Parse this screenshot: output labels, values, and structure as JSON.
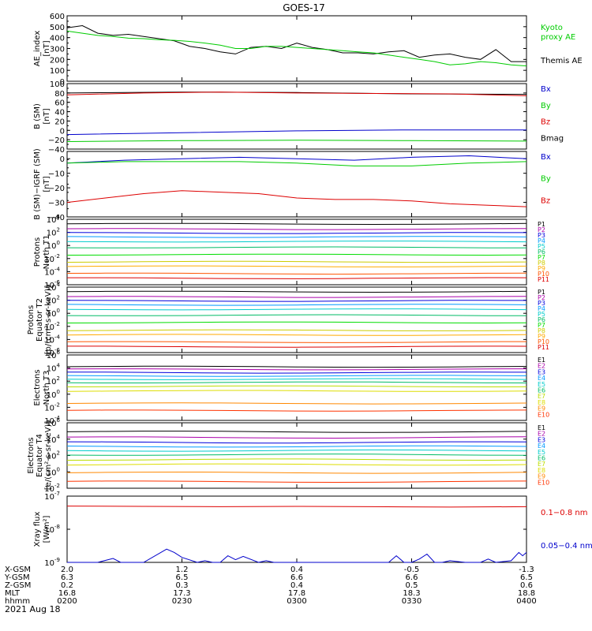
{
  "title": "GOES-17",
  "date": "2021 Aug 18",
  "colors": {
    "black": "#000000",
    "red": "#dd0000",
    "green": "#00cc00",
    "blue": "#0000cc",
    "P": [
      "#000000",
      "#aa00aa",
      "#0000dd",
      "#0099ff",
      "#00cccc",
      "#00bb66",
      "#00dd00",
      "#cccc00",
      "#ffaa00",
      "#ff5500",
      "#dd0000"
    ],
    "E": [
      "#000000",
      "#aa00aa",
      "#0000dd",
      "#0099ff",
      "#00cccc",
      "#00bb66",
      "#bbdd00",
      "#dddd00",
      "#ff8800",
      "#ff3300"
    ]
  },
  "ephemeris": {
    "rows": [
      {
        "label": "X-GSM",
        "values": [
          "2.0",
          "1.2",
          "0.4",
          "-0.5",
          "-1.3"
        ]
      },
      {
        "label": "Y-GSM",
        "values": [
          "6.3",
          "6.5",
          "6.6",
          "6.6",
          "6.5"
        ]
      },
      {
        "label": "Z-GSM",
        "values": [
          "0.2",
          "0.3",
          "0.4",
          "0.5",
          "0.6"
        ]
      },
      {
        "label": "MLT",
        "values": [
          "16.8",
          "17.3",
          "17.8",
          "18.3",
          "18.8"
        ]
      },
      {
        "label": "hhmm",
        "values": [
          "0200",
          "0230",
          "0300",
          "0330",
          "0400"
        ]
      }
    ]
  },
  "chart_data": [
    {
      "type": "line",
      "id": "ae",
      "ylabel": [
        "AE_index",
        "[nT]"
      ],
      "ylim": [
        0,
        600
      ],
      "log": false,
      "ticks": [
        "0",
        "100",
        "200",
        "300",
        "400",
        "500",
        "600"
      ],
      "x_range": [
        "02:00",
        "04:00"
      ],
      "legend": [
        {
          "text": "Kyoto",
          "color": "green"
        },
        {
          "text": "proxy AE",
          "color": "green"
        },
        {
          "text": "Themis AE",
          "color": "black"
        }
      ],
      "series": [
        {
          "name": "Themis AE",
          "color": "black",
          "x": [
            0,
            4,
            8,
            12,
            16,
            20,
            24,
            28,
            32,
            36,
            40,
            44,
            48,
            52,
            56,
            60,
            64,
            68,
            72,
            76,
            80,
            84,
            88,
            92,
            96,
            100,
            104,
            108,
            112,
            116,
            120
          ],
          "y": [
            490,
            510,
            440,
            420,
            430,
            410,
            390,
            370,
            320,
            300,
            270,
            250,
            310,
            320,
            300,
            350,
            310,
            290,
            260,
            260,
            250,
            270,
            280,
            220,
            240,
            250,
            220,
            200,
            290,
            180,
            180
          ]
        },
        {
          "name": "Kyoto proxy AE",
          "color": "green",
          "x": [
            0,
            4,
            8,
            12,
            16,
            20,
            24,
            28,
            32,
            36,
            40,
            44,
            48,
            52,
            56,
            60,
            64,
            68,
            72,
            76,
            80,
            84,
            88,
            92,
            96,
            100,
            104,
            108,
            112,
            116,
            120
          ],
          "y": [
            460,
            440,
            420,
            410,
            395,
            390,
            380,
            375,
            365,
            350,
            330,
            300,
            300,
            320,
            320,
            310,
            300,
            290,
            280,
            270,
            260,
            240,
            220,
            200,
            180,
            150,
            160,
            180,
            170,
            150,
            140
          ]
        }
      ]
    },
    {
      "type": "line",
      "id": "bsm",
      "ylabel": [
        "B (SM)",
        "[nT]"
      ],
      "ylim": [
        -40,
        100
      ],
      "log": false,
      "ticks": [
        "−40",
        "−20",
        "0",
        "20",
        "40",
        "60",
        "80",
        "100"
      ],
      "legend": [
        {
          "text": "Bx",
          "color": "blue"
        },
        {
          "text": "By",
          "color": "green"
        },
        {
          "text": "Bz",
          "color": "red"
        },
        {
          "text": "Bmag",
          "color": "black"
        }
      ],
      "series": [
        {
          "name": "Bmag",
          "color": "black",
          "x": [
            0,
            30,
            60,
            90,
            120
          ],
          "y": [
            80,
            82,
            81,
            78,
            77
          ]
        },
        {
          "name": "Bz",
          "color": "red",
          "x": [
            0,
            20,
            40,
            60,
            80,
            100,
            120
          ],
          "y": [
            76,
            80,
            82,
            80,
            79,
            78,
            74
          ]
        },
        {
          "name": "Bx",
          "color": "blue",
          "x": [
            0,
            30,
            60,
            90,
            120
          ],
          "y": [
            -9,
            -5,
            -1,
            1,
            1
          ]
        },
        {
          "name": "By",
          "color": "green",
          "x": [
            0,
            30,
            60,
            90,
            120
          ],
          "y": [
            -24,
            -22,
            -21,
            -22,
            -23
          ]
        }
      ]
    },
    {
      "type": "line",
      "id": "bigrf",
      "ylabel": [
        "B (SM)−IGRF (SM)",
        "[nT]"
      ],
      "ylim": [
        -40,
        5
      ],
      "log": false,
      "ticks": [
        "−40",
        "−30",
        "−20",
        "−10",
        "0"
      ],
      "legend": [
        {
          "text": "Bx",
          "color": "blue"
        },
        {
          "text": "By",
          "color": "green"
        },
        {
          "text": "Bz",
          "color": "red"
        }
      ],
      "series": [
        {
          "name": "Bx",
          "color": "blue",
          "x": [
            0,
            15,
            30,
            45,
            60,
            75,
            90,
            105,
            120
          ],
          "y": [
            -3,
            -1,
            0,
            1,
            0,
            -1,
            1,
            2,
            0
          ]
        },
        {
          "name": "By",
          "color": "green",
          "x": [
            0,
            15,
            30,
            45,
            60,
            75,
            90,
            105,
            120
          ],
          "y": [
            -3,
            -2,
            -2,
            -2,
            -3,
            -5,
            -5,
            -3,
            -2
          ]
        },
        {
          "name": "Bz",
          "color": "red",
          "x": [
            0,
            10,
            20,
            30,
            40,
            50,
            60,
            70,
            80,
            90,
            100,
            110,
            120
          ],
          "y": [
            -30,
            -27,
            -24,
            -22,
            -23,
            -24,
            -27,
            -28,
            -28,
            -29,
            -31,
            -32,
            -33
          ]
        }
      ]
    },
    {
      "type": "line",
      "id": "protons_t1",
      "ylabel": [
        "Protons",
        "North T1"
      ],
      "ylim": [
        -6,
        4
      ],
      "log": true,
      "ticks": [
        "10-6",
        "10-4",
        "10-2",
        "100",
        "102",
        "104"
      ],
      "legend_labels": [
        "P1",
        "P2",
        "P3",
        "P4",
        "P5",
        "P6",
        "P7",
        "P8",
        "P9",
        "P10",
        "P11"
      ],
      "series_levels": [
        3.3,
        2.5,
        1.9,
        1.3,
        0.6,
        -0.3,
        -1.4,
        -2.5,
        -3.2,
        -4.3,
        -5.0
      ]
    },
    {
      "type": "line",
      "id": "protons_t2",
      "ylabel": [
        "Protons",
        "Equator T2",
        "[p/(cm²-s-sr-keV)]"
      ],
      "ylim": [
        -6,
        4
      ],
      "log": true,
      "ticks": [
        "10-6",
        "10-4",
        "10-2",
        "100",
        "102",
        "104"
      ],
      "legend_labels": [
        "P1",
        "P2",
        "P3",
        "P4",
        "P5",
        "P6",
        "P7",
        "P8",
        "P9",
        "P10",
        "P11"
      ],
      "series_levels": [
        3.3,
        2.5,
        1.9,
        1.3,
        0.6,
        -0.3,
        -1.4,
        -2.6,
        -3.3,
        -4.4,
        -5.1
      ]
    },
    {
      "type": "line",
      "id": "electrons_t3",
      "ylabel": [
        "Electrons",
        "North T3"
      ],
      "ylim": [
        -4,
        6
      ],
      "log": true,
      "ticks": [
        "10-4",
        "10-2",
        "100",
        "102",
        "104",
        "106"
      ],
      "legend_labels": [
        "E1",
        "E2",
        "E3",
        "E4",
        "E5",
        "E6",
        "E7",
        "E8",
        "E9",
        "E10"
      ],
      "series_levels": [
        4.2,
        3.8,
        3.3,
        2.8,
        2.3,
        1.8,
        1.2,
        0.5,
        -1.4,
        -2.5
      ]
    },
    {
      "type": "line",
      "id": "electrons_t4",
      "ylabel": [
        "Electrons",
        "Equator T4",
        "[e/(cm²-s-sr-keV)]"
      ],
      "ylim": [
        -2,
        6
      ],
      "log": true,
      "ticks": [
        "10-2",
        "100",
        "102",
        "104",
        "106"
      ],
      "legend_labels": [
        "E1",
        "E2",
        "E3",
        "E4",
        "E5",
        "E6",
        "E7",
        "E8",
        "E9",
        "E10"
      ],
      "series_levels": [
        4.9,
        4.2,
        3.6,
        3.1,
        2.6,
        2.1,
        1.5,
        0.9,
        -0.1,
        -1.2
      ]
    },
    {
      "type": "line",
      "id": "xray",
      "ylabel": [
        "Xray flux",
        "[W/m²]"
      ],
      "ylim": [
        -9,
        -7
      ],
      "log": true,
      "ticks": [
        "10-9",
        "10-8",
        "10-7"
      ],
      "legend": [
        {
          "text": "0.1−0.8 nm",
          "color": "red"
        },
        {
          "text": "0.05−0.4 nm",
          "color": "blue"
        }
      ],
      "series": [
        {
          "name": "0.1−0.8 nm",
          "color": "red",
          "x": [
            0,
            20,
            40,
            60,
            80,
            100,
            120
          ],
          "y": [
            -7.3,
            -7.31,
            -7.32,
            -7.31,
            -7.32,
            -7.33,
            -7.32
          ]
        },
        {
          "name": "0.05−0.4 nm",
          "color": "blue",
          "x": [
            0,
            8,
            12,
            14,
            16,
            20,
            26,
            28,
            30,
            34,
            36,
            38,
            40,
            42,
            44,
            46,
            50,
            52,
            54,
            60,
            66,
            76,
            84,
            86,
            88,
            90,
            92,
            94,
            96,
            98,
            100,
            104,
            108,
            110,
            112,
            116,
            118,
            119,
            120
          ],
          "y": [
            -9,
            -9,
            -8.88,
            -9,
            -9,
            -9,
            -8.6,
            -8.7,
            -8.85,
            -9,
            -8.95,
            -9,
            -9,
            -8.8,
            -8.92,
            -8.82,
            -9,
            -8.95,
            -9,
            -9,
            -9,
            -9,
            -9,
            -8.8,
            -9,
            -9,
            -8.9,
            -8.75,
            -9,
            -9,
            -8.95,
            -9,
            -9,
            -8.9,
            -9,
            -8.95,
            -8.7,
            -8.8,
            -8.7
          ]
        }
      ]
    }
  ]
}
